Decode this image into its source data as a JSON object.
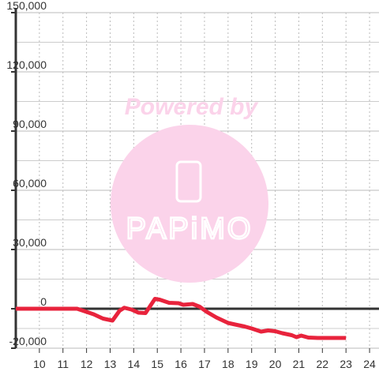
{
  "chart_data": {
    "type": "line",
    "watermark": {
      "line1": "Powered by",
      "line2": "PAPiMO"
    },
    "x": [
      9,
      11.6,
      12,
      12.3,
      12.7,
      13.1,
      13.4,
      13.6,
      13.9,
      14.2,
      14.5,
      14.9,
      15.1,
      15.5,
      15.9,
      16.1,
      16.5,
      16.8,
      17.1,
      17.5,
      18.0,
      18.3,
      18.7,
      19.0,
      19.4,
      19.7,
      20.0,
      20.3,
      20.7,
      20.9,
      21.1,
      21.4,
      21.8,
      22.0,
      23.0
    ],
    "series": [
      {
        "color": "#e8233c",
        "values": [
          0,
          0,
          -1600,
          -2800,
          -5000,
          -6000,
          -1000,
          500,
          -400,
          -2000,
          -2200,
          5000,
          4600,
          3000,
          2800,
          2000,
          2400,
          1000,
          -1600,
          -4400,
          -7200,
          -8000,
          -9000,
          -10000,
          -11600,
          -11000,
          -11400,
          -12400,
          -13400,
          -14400,
          -13600,
          -14600,
          -14800,
          -14800,
          -14800
        ]
      }
    ],
    "xlim": [
      9,
      24.4
    ],
    "xticks": [
      10,
      11,
      12,
      13,
      14,
      15,
      16,
      17,
      18,
      19,
      20,
      21,
      22,
      23,
      24
    ],
    "ylim": [
      -20000,
      150000
    ],
    "yticks": [
      {
        "value": 150000,
        "label": "150,000"
      },
      {
        "value": 120000,
        "label": "120,000"
      },
      {
        "value": 90000,
        "label": "90,000"
      },
      {
        "value": 60000,
        "label": "60,000"
      },
      {
        "value": 30000,
        "label": "30,000"
      },
      0,
      {
        "value": -20000,
        "label": "-20,000"
      }
    ],
    "minor_yticks": [
      135000,
      105000,
      75000,
      45000,
      15000,
      -10000
    ],
    "grid": true
  }
}
